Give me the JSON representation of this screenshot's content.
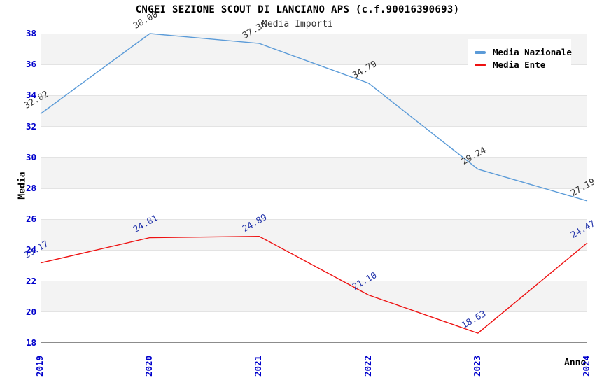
{
  "title": "CNGEI SEZIONE SCOUT DI LANCIANO APS (c.f.90016390693)",
  "subtitle": "Media Importi",
  "colors": {
    "background": "#ffffff",
    "band_gray": "#f3f3f3",
    "gridline": "#e3e3e3",
    "axis_line": "#8c8c8c",
    "plot_border": "#cccccc",
    "tick_label_blue": "#0000cc",
    "series_nazionale_line": "#5b9bd8",
    "series_nazionale_point_label": "#333333",
    "series_ente_line": "#ee1111",
    "series_ente_point_label": "#2233aa"
  },
  "legend": {
    "items": [
      {
        "label": "Media Nazionale"
      },
      {
        "label": "Media Ente"
      }
    ]
  },
  "chart_data": {
    "type": "line",
    "title": "CNGEI SEZIONE SCOUT DI LANCIANO APS (c.f.90016390693)",
    "subtitle": "Media Importi",
    "xlabel": "Anno",
    "ylabel": "Media",
    "categories": [
      "2019",
      "2020",
      "2021",
      "2022",
      "2023",
      "2024"
    ],
    "series": [
      {
        "name": "Media Nazionale",
        "color": "#5b9bd8",
        "label_color": "#333333",
        "values": [
          32.82,
          38.0,
          37.36,
          34.79,
          29.24,
          27.19
        ]
      },
      {
        "name": "Media Ente",
        "color": "#ee1111",
        "label_color": "#2233aa",
        "values": [
          23.17,
          24.81,
          24.89,
          21.1,
          18.63,
          24.47
        ]
      }
    ],
    "ylim": [
      18,
      38
    ],
    "ytick_step": 2,
    "yticks": [
      18,
      20,
      22,
      24,
      26,
      28,
      30,
      32,
      34,
      36,
      38
    ],
    "grid": "horizontal-bands-alternating",
    "legend_position": "top-right",
    "point_labels_decimals": 2
  }
}
